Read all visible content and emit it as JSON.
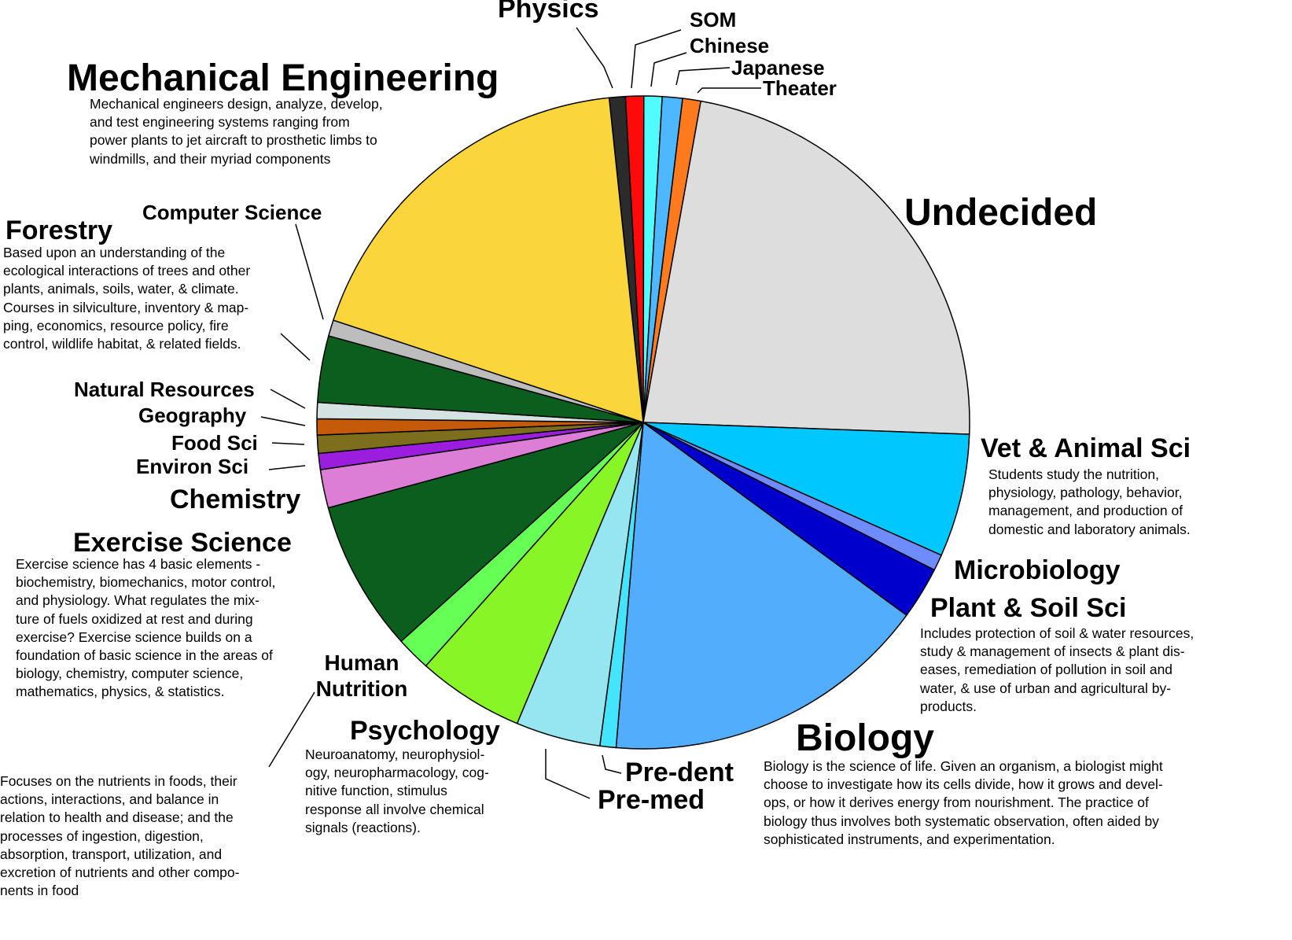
{
  "chart_data": {
    "type": "pie",
    "title": "",
    "unit": "percent of students (estimated)",
    "slices": [
      {
        "label": "Physics",
        "value": 0.8,
        "color": "#2b2b2b"
      },
      {
        "label": "SOM",
        "value": 0.9,
        "color": "#ff0a0a"
      },
      {
        "label": "Chinese",
        "value": 0.9,
        "color": "#50fcff"
      },
      {
        "label": "Japanese",
        "value": 1.0,
        "color": "#4db8ff"
      },
      {
        "label": "Theater",
        "value": 0.9,
        "color": "#ff7a1c"
      },
      {
        "label": "Undecided",
        "value": 22.8,
        "color": "#dcdddc"
      },
      {
        "label": "Vet & Animal Sci",
        "value": 6.1,
        "color": "#00c8ff",
        "description": "Students study the nutrition,\nphysiology, pathology, behavior,\nmanagement, and production of\ndomestic and laboratory animals."
      },
      {
        "label": "Microbiology",
        "value": 0.8,
        "color": "#6f8cff"
      },
      {
        "label": "Plant & Soil Sci",
        "value": 2.6,
        "color": "#0000cc",
        "description": "Includes protection of soil & water resources,\nstudy & management of insects & plant dis-\neases, remediation of pollution in soil and\nwater, & use of urban and agricultural by-\nproducts."
      },
      {
        "label": "Biology",
        "value": 16.3,
        "color": "#52aefc",
        "description": "Biology is the science of life. Given an organism, a biologist might\nchoose to investigate how its cells divide, how it grows and devel-\nops, or how it derives energy from nourishment. The practice of\nbiology thus involves both systematic observation, often aided by\nsophisticated instruments, and experimentation."
      },
      {
        "label": "Pre-dent",
        "value": 0.8,
        "color": "#44e4ff"
      },
      {
        "label": "Pre-med",
        "value": 4.2,
        "color": "#95e6f0"
      },
      {
        "label": "Psychology",
        "value": 5.3,
        "color": "#88f526",
        "description": "Neuroanatomy, neurophysiol-\nogy, neuropharmacology, cog-\nnitive function, stimulus\nresponse all involve chemical\nsignals (reactions)."
      },
      {
        "label": "Human Nutrition",
        "value": 1.7,
        "color": "#66ff55",
        "description": "Focuses on the nutrients in foods, their\nactions, interactions, and balance in\nrelation to health and disease; and the\nprocesses of ingestion, digestion,\nabsorption, transport, utilization, and\nexcretion of nutrients and other compo-\nnents in food"
      },
      {
        "label": "Exercise Science",
        "value": 7.5,
        "color": "#0b5e1e",
        "description": "Exercise science has 4 basic elements -\nbiochemistry, biomechanics, motor control,\nand physiology. What regulates the mix-\nture of fuels oxidized at rest and during\nexercise? Exercise science builds on a\nfoundation of basic science in the areas of\nbiology, chemistry, computer science,\nmathematics, physics, & statistics."
      },
      {
        "label": "Chemistry",
        "value": 1.9,
        "color": "#dd7ed6"
      },
      {
        "label": "Environ Sci",
        "value": 0.8,
        "color": "#9b1ede"
      },
      {
        "label": "Food Sci",
        "value": 0.9,
        "color": "#7d6e1e"
      },
      {
        "label": "Geography",
        "value": 0.8,
        "color": "#c45a0a"
      },
      {
        "label": "Natural Resources",
        "value": 0.8,
        "color": "#d4e2e2"
      },
      {
        "label": "Forestry",
        "value": 3.3,
        "color": "#0b5e1e",
        "description": "Based upon an understanding of the\necological interactions of trees and other\nplants, animals, soils, water, & climate.\nCourses in silviculture, inventory & map-\nping, economics, resource policy, fire\ncontrol, wildlife habitat, & related fields."
      },
      {
        "label": "Computer Science",
        "value": 0.8,
        "color": "#bdbdbd"
      },
      {
        "label": "Mechanical Engineering",
        "value": 18.3,
        "color": "#fbd53c",
        "description": "Mechanical engineers design, analyze, develop,\nand test engineering systems ranging from\npower plants to jet aircraft to prosthetic limbs to\nwindmills, and their myriad components"
      }
    ],
    "legend": "none",
    "grid": false
  }
}
